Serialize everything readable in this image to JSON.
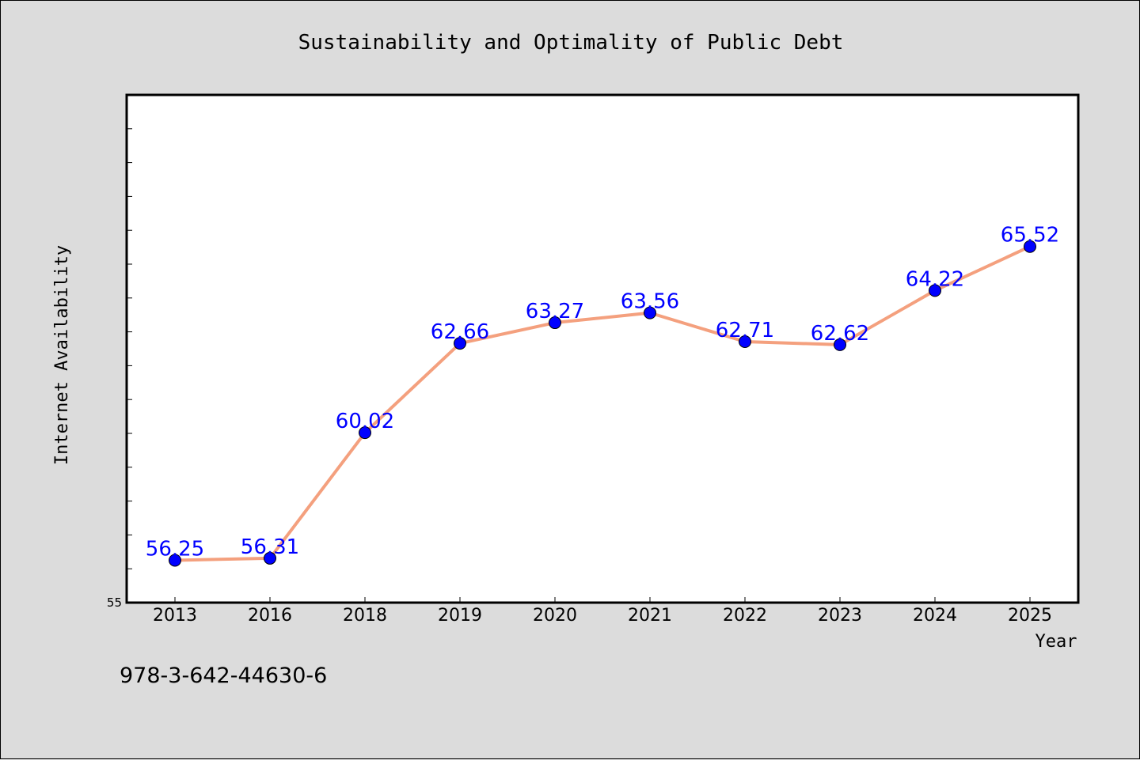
{
  "chart_data": {
    "type": "line",
    "title": "Sustainability and Optimality of Public Debt",
    "xlabel": "Year",
    "ylabel": "Internet Availability",
    "categories": [
      "2013",
      "2016",
      "2018",
      "2019",
      "2020",
      "2021",
      "2022",
      "2023",
      "2024",
      "2025"
    ],
    "series": [
      {
        "values": [
          56.25,
          56.31,
          60.02,
          62.66,
          63.27,
          63.56,
          62.71,
          62.62,
          64.22,
          65.52
        ]
      }
    ],
    "data_labels": [
      "56.25",
      "56.31",
      "60.02",
      "62.66",
      "63.27",
      "63.56",
      "62.71",
      "62.62",
      "64.22",
      "65.52"
    ],
    "ylim": [
      55,
      70
    ],
    "ytick_labels": [
      "55"
    ],
    "grid": false,
    "line_color": "#f4a07e",
    "marker_color": "#0000ff",
    "label_color": "#0000ff"
  },
  "caption": "978-3-642-44630-6"
}
